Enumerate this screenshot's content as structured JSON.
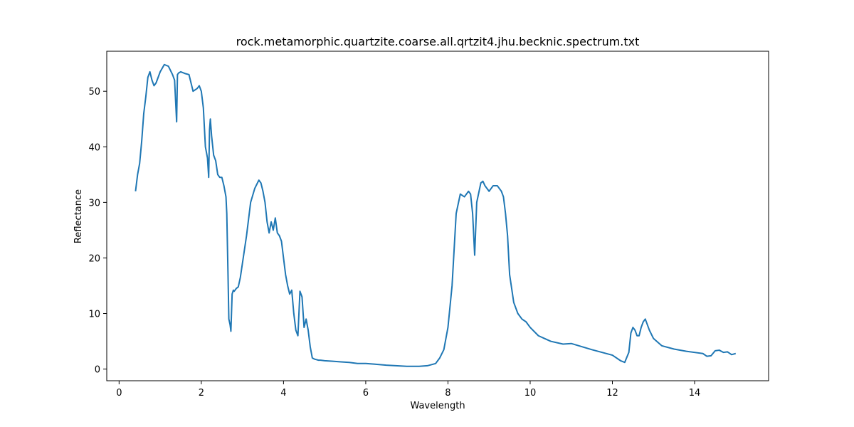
{
  "chart_data": {
    "type": "line",
    "title": "rock.metamorphic.quartzite.coarse.all.qrtzit4.jhu.becknic.spectrum.txt",
    "xlabel": "Wavelength",
    "ylabel": "Reflectance",
    "xlim": [
      -0.3,
      15.8
    ],
    "ylim": [
      -2.1,
      57.2
    ],
    "xticks": [
      0,
      2,
      4,
      6,
      8,
      10,
      12,
      14
    ],
    "yticks": [
      0,
      10,
      20,
      30,
      40,
      50
    ],
    "grid": false,
    "legend": "none",
    "series": [
      {
        "color": "#1f77b4",
        "x": [
          0.4,
          0.45,
          0.5,
          0.55,
          0.6,
          0.65,
          0.7,
          0.75,
          0.8,
          0.85,
          0.9,
          1.0,
          1.1,
          1.2,
          1.3,
          1.35,
          1.4,
          1.42,
          1.45,
          1.5,
          1.6,
          1.7,
          1.8,
          1.9,
          1.95,
          2.0,
          2.05,
          2.1,
          2.15,
          2.18,
          2.2,
          2.22,
          2.25,
          2.3,
          2.35,
          2.4,
          2.45,
          2.5,
          2.55,
          2.6,
          2.62,
          2.65,
          2.67,
          2.7,
          2.72,
          2.75,
          2.78,
          2.8,
          2.85,
          2.9,
          2.95,
          3.0,
          3.1,
          3.2,
          3.3,
          3.4,
          3.45,
          3.5,
          3.55,
          3.6,
          3.65,
          3.7,
          3.75,
          3.8,
          3.85,
          3.9,
          3.95,
          4.0,
          4.05,
          4.1,
          4.15,
          4.2,
          4.25,
          4.3,
          4.35,
          4.4,
          4.45,
          4.5,
          4.55,
          4.6,
          4.65,
          4.7,
          4.75,
          4.8,
          4.85,
          4.9,
          5.0,
          5.2,
          5.4,
          5.6,
          5.8,
          6.0,
          6.2,
          6.5,
          7.0,
          7.3,
          7.5,
          7.7,
          7.8,
          7.9,
          8.0,
          8.1,
          8.2,
          8.3,
          8.4,
          8.5,
          8.55,
          8.6,
          8.65,
          8.7,
          8.8,
          8.85,
          8.9,
          9.0,
          9.1,
          9.2,
          9.3,
          9.35,
          9.4,
          9.45,
          9.5,
          9.6,
          9.7,
          9.8,
          9.9,
          10.0,
          10.2,
          10.5,
          10.8,
          11.0,
          11.5,
          12.0,
          12.2,
          12.3,
          12.4,
          12.45,
          12.5,
          12.55,
          12.6,
          12.65,
          12.7,
          12.75,
          12.8,
          12.9,
          13.0,
          13.2,
          13.5,
          13.8,
          14.0,
          14.2,
          14.3,
          14.4,
          14.5,
          14.6,
          14.7,
          14.8,
          14.9,
          15.0
        ],
        "y": [
          32.0,
          35.0,
          37.0,
          41.0,
          46.0,
          49.0,
          52.5,
          53.5,
          52.0,
          51.0,
          51.5,
          53.5,
          54.8,
          54.5,
          53.0,
          52.0,
          44.5,
          53.0,
          53.3,
          53.5,
          53.2,
          53.0,
          50.0,
          50.5,
          51.0,
          50.0,
          47.0,
          40.0,
          38.0,
          34.5,
          43.0,
          45.0,
          42.0,
          38.5,
          37.5,
          35.0,
          34.5,
          34.5,
          33.0,
          31.0,
          28.0,
          17.0,
          9.0,
          8.0,
          6.8,
          13.5,
          14.2,
          14.0,
          14.5,
          14.8,
          16.5,
          19.0,
          24.0,
          30.0,
          32.5,
          34.0,
          33.5,
          32.0,
          30.0,
          26.5,
          24.5,
          26.5,
          25.0,
          27.2,
          24.5,
          24.0,
          23.0,
          20.0,
          17.0,
          15.0,
          13.5,
          14.2,
          10.0,
          7.0,
          6.0,
          14.0,
          13.0,
          7.5,
          9.0,
          7.0,
          4.0,
          2.0,
          1.8,
          1.7,
          1.6,
          1.6,
          1.5,
          1.4,
          1.3,
          1.2,
          1.0,
          1.0,
          0.9,
          0.7,
          0.5,
          0.5,
          0.6,
          1.0,
          2.0,
          3.5,
          7.5,
          15.0,
          28.0,
          31.5,
          31.0,
          32.0,
          31.5,
          28.0,
          20.5,
          30.0,
          33.5,
          33.8,
          33.0,
          32.0,
          33.0,
          33.0,
          32.0,
          31.0,
          28.0,
          24.0,
          17.0,
          12.0,
          10.0,
          9.0,
          8.5,
          7.5,
          6.0,
          5.0,
          4.5,
          4.6,
          3.5,
          2.5,
          1.5,
          1.2,
          3.0,
          6.5,
          7.5,
          7.0,
          6.0,
          6.0,
          7.5,
          8.5,
          9.0,
          7.0,
          5.5,
          4.2,
          3.6,
          3.2,
          3.0,
          2.8,
          2.3,
          2.4,
          3.3,
          3.4,
          3.0,
          3.1,
          2.6,
          2.8
        ]
      }
    ]
  }
}
